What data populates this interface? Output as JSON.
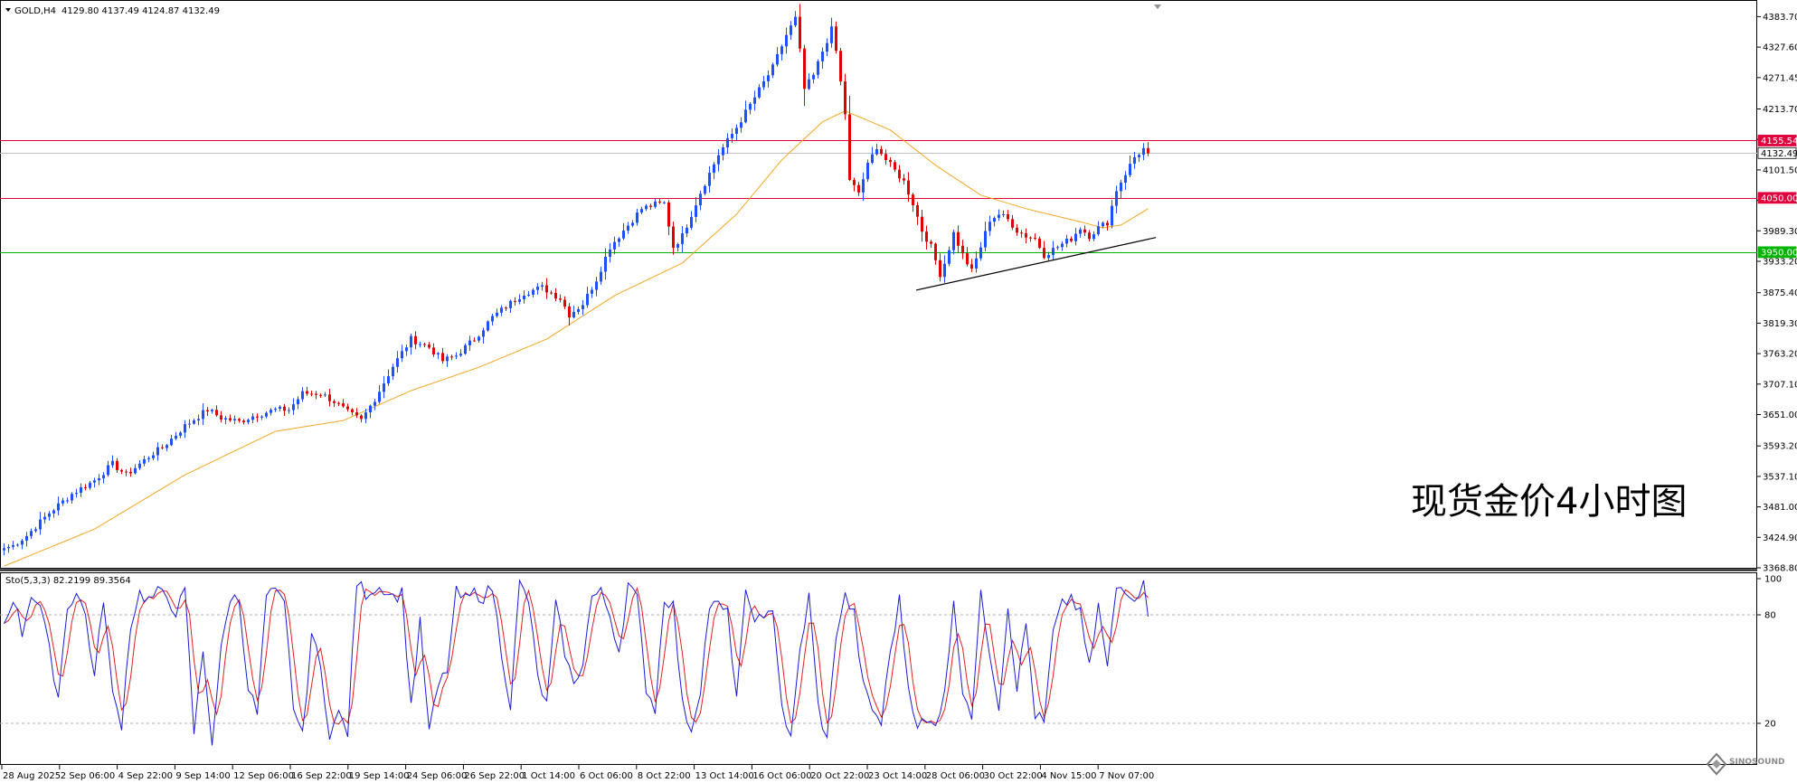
{
  "header": {
    "symbol": "GOLD,H4",
    "ohlc": "4129.80 4137.49 4124.87 4132.49"
  },
  "annotation": "现货金价4小时图",
  "watermark": "SINOSOUND",
  "colors": {
    "bull": "#1e50ff",
    "bear": "#e00000",
    "ma": "#f5a623",
    "resistance": "#e0003c",
    "support": "#00b400",
    "price_line": "#c0c0c0",
    "sto_main": "#1a1ad6",
    "sto_signal": "#e02020",
    "trendline": "#000000"
  },
  "price_axis": {
    "ticks": [
      "4383.70",
      "4327.60",
      "4271.45",
      "4213.70",
      "4157.60",
      "4101.50",
      "4045.40",
      "3989.30",
      "3933.20",
      "3875.40",
      "3819.30",
      "3763.20",
      "3707.10",
      "3651.00",
      "3593.20",
      "3537.10",
      "3481.00",
      "3424.90",
      "3368.80"
    ],
    "tick_values": [
      4383.7,
      4327.6,
      4271.45,
      4213.7,
      4157.6,
      4101.5,
      4045.4,
      3989.3,
      3933.2,
      3875.4,
      3819.3,
      3763.2,
      3707.1,
      3651.0,
      3593.2,
      3537.1,
      3481.0,
      3424.9,
      3368.8
    ],
    "range": [
      3368.8,
      4411
    ]
  },
  "levels": [
    {
      "label": "4155.54",
      "value": 4155.54,
      "type": "resistance"
    },
    {
      "label": "4132.49",
      "value": 4132.49,
      "type": "current"
    },
    {
      "label": "4050.00",
      "value": 4050.0,
      "type": "resistance"
    },
    {
      "label": "3950.00",
      "value": 3950.0,
      "type": "support"
    }
  ],
  "time_axis": [
    "28 Aug 2025",
    "2 Sep 06:00",
    "4 Sep 22:00",
    "9 Sep 14:00",
    "12 Sep 06:00",
    "16 Sep 22:00",
    "19 Sep 14:00",
    "24 Sep 06:00",
    "26 Sep 22:00",
    "1 Oct 14:00",
    "6 Oct 06:00",
    "8 Oct 22:00",
    "13 Oct 14:00",
    "16 Oct 06:00",
    "20 Oct 22:00",
    "23 Oct 14:00",
    "28 Oct 06:00",
    "30 Oct 22:00",
    "4 Nov 15:00",
    "7 Nov 07:00"
  ],
  "stochastic": {
    "label": "Sto(5,3,3) 82.2199 89.3564",
    "levels": [
      "100",
      "80",
      "20"
    ],
    "level_values": [
      100,
      80,
      20
    ]
  },
  "chart_data": [
    {
      "type": "candlestick",
      "title": "GOLD,H4",
      "ylim": [
        3368.8,
        4411
      ],
      "x_labels": [
        "28 Aug 2025",
        "2 Sep 06:00",
        "4 Sep 22:00",
        "9 Sep 14:00",
        "12 Sep 06:00",
        "16 Sep 22:00",
        "19 Sep 14:00",
        "24 Sep 06:00",
        "26 Sep 22:00",
        "1 Oct 14:00",
        "6 Oct 06:00",
        "8 Oct 22:00",
        "13 Oct 14:00",
        "16 Oct 06:00",
        "20 Oct 22:00",
        "23 Oct 14:00",
        "28 Oct 06:00",
        "30 Oct 22:00",
        "4 Nov 15:00",
        "7 Nov 07:00"
      ],
      "close_anchors": [
        [
          0,
          3405
        ],
        [
          2,
          3410
        ],
        [
          5,
          3428
        ],
        [
          10,
          3470
        ],
        [
          15,
          3505
        ],
        [
          20,
          3530
        ],
        [
          24,
          3560
        ],
        [
          27,
          3540
        ],
        [
          30,
          3560
        ],
        [
          33,
          3580
        ],
        [
          35,
          3590
        ],
        [
          40,
          3630
        ],
        [
          45,
          3660
        ],
        [
          48,
          3645
        ],
        [
          52,
          3638
        ],
        [
          55,
          3648
        ],
        [
          60,
          3660
        ],
        [
          63,
          3660
        ],
        [
          66,
          3690
        ],
        [
          70,
          3690
        ],
        [
          73,
          3675
        ],
        [
          76,
          3655
        ],
        [
          79,
          3640
        ],
        [
          82,
          3680
        ],
        [
          86,
          3740
        ],
        [
          90,
          3790
        ],
        [
          94,
          3775
        ],
        [
          97,
          3750
        ],
        [
          100,
          3760
        ],
        [
          104,
          3790
        ],
        [
          108,
          3830
        ],
        [
          111,
          3850
        ],
        [
          115,
          3875
        ],
        [
          119,
          3885
        ],
        [
          123,
          3865
        ],
        [
          125,
          3835
        ],
        [
          128,
          3855
        ],
        [
          131,
          3900
        ],
        [
          134,
          3960
        ],
        [
          138,
          4000
        ],
        [
          141,
          4030
        ],
        [
          144,
          4038
        ],
        [
          146,
          4040
        ],
        [
          148,
          3960
        ],
        [
          150,
          3980
        ],
        [
          154,
          4060
        ],
        [
          158,
          4130
        ],
        [
          162,
          4180
        ],
        [
          166,
          4235
        ],
        [
          170,
          4290
        ],
        [
          173,
          4350
        ],
        [
          175,
          4380
        ],
        [
          176,
          4320
        ],
        [
          177,
          4250
        ],
        [
          179,
          4275
        ],
        [
          181,
          4320
        ],
        [
          183,
          4360
        ],
        [
          184,
          4320
        ],
        [
          186,
          4205
        ],
        [
          187,
          4080
        ],
        [
          189,
          4060
        ],
        [
          191,
          4110
        ],
        [
          193,
          4145
        ],
        [
          195,
          4120
        ],
        [
          197,
          4100
        ],
        [
          199,
          4080
        ],
        [
          201,
          4040
        ],
        [
          203,
          3990
        ],
        [
          205,
          3960
        ],
        [
          207,
          3910
        ],
        [
          208,
          3930
        ],
        [
          210,
          3985
        ],
        [
          212,
          3945
        ],
        [
          214,
          3915
        ],
        [
          216,
          3960
        ],
        [
          218,
          4010
        ],
        [
          220,
          4020
        ],
        [
          222,
          4010
        ],
        [
          224,
          3990
        ],
        [
          226,
          3980
        ],
        [
          228,
          3975
        ],
        [
          230,
          3945
        ],
        [
          232,
          3955
        ],
        [
          234,
          3965
        ],
        [
          236,
          3975
        ],
        [
          238,
          3995
        ],
        [
          240,
          3980
        ],
        [
          242,
          3995
        ],
        [
          244,
          4005
        ],
        [
          246,
          4065
        ],
        [
          248,
          4095
        ],
        [
          250,
          4125
        ],
        [
          252,
          4140
        ],
        [
          253,
          4132
        ]
      ],
      "moving_average_anchors": [
        [
          0,
          3372
        ],
        [
          20,
          3440
        ],
        [
          40,
          3540
        ],
        [
          60,
          3620
        ],
        [
          75,
          3640
        ],
        [
          90,
          3695
        ],
        [
          105,
          3738
        ],
        [
          120,
          3790
        ],
        [
          135,
          3870
        ],
        [
          150,
          3930
        ],
        [
          162,
          4020
        ],
        [
          172,
          4120
        ],
        [
          181,
          4190
        ],
        [
          186,
          4210
        ],
        [
          196,
          4175
        ],
        [
          206,
          4110
        ],
        [
          216,
          4055
        ],
        [
          226,
          4030
        ],
        [
          236,
          4010
        ],
        [
          243,
          3995
        ],
        [
          247,
          4000
        ],
        [
          253,
          4030
        ]
      ],
      "trendline": {
        "start": [
          202,
          3880
        ],
        "end": [
          255,
          3977
        ]
      },
      "annotations": [
        "现货金价4小时图"
      ]
    },
    {
      "type": "line",
      "title": "Sto(5,3,3) 82.2199 89.3564",
      "ylim": [
        0,
        100
      ],
      "levels": [
        20,
        80
      ],
      "main_anchors": [
        [
          0,
          75
        ],
        [
          2,
          90
        ],
        [
          4,
          70
        ],
        [
          6,
          92
        ],
        [
          8,
          85
        ],
        [
          10,
          60
        ],
        [
          12,
          35
        ],
        [
          14,
          85
        ],
        [
          16,
          92
        ],
        [
          18,
          80
        ],
        [
          20,
          45
        ],
        [
          22,
          90
        ],
        [
          24,
          35
        ],
        [
          26,
          20
        ],
        [
          28,
          75
        ],
        [
          30,
          92
        ],
        [
          32,
          88
        ],
        [
          34,
          92
        ],
        [
          36,
          90
        ],
        [
          38,
          82
        ],
        [
          40,
          92
        ],
        [
          42,
          15
        ],
        [
          44,
          60
        ],
        [
          46,
          10
        ],
        [
          48,
          60
        ],
        [
          50,
          90
        ],
        [
          52,
          88
        ],
        [
          54,
          40
        ],
        [
          56,
          25
        ],
        [
          58,
          90
        ],
        [
          60,
          92
        ],
        [
          62,
          85
        ],
        [
          64,
          30
        ],
        [
          66,
          12
        ],
        [
          68,
          70
        ],
        [
          70,
          50
        ],
        [
          72,
          15
        ],
        [
          74,
          25
        ],
        [
          76,
          15
        ],
        [
          78,
          98
        ],
        [
          80,
          92
        ],
        [
          82,
          95
        ],
        [
          84,
          95
        ],
        [
          86,
          90
        ],
        [
          88,
          92
        ],
        [
          90,
          30
        ],
        [
          92,
          75
        ],
        [
          94,
          15
        ],
        [
          96,
          40
        ],
        [
          98,
          50
        ],
        [
          100,
          92
        ],
        [
          102,
          88
        ],
        [
          104,
          92
        ],
        [
          106,
          90
        ],
        [
          108,
          95
        ],
        [
          110,
          60
        ],
        [
          112,
          30
        ],
        [
          114,
          97
        ],
        [
          116,
          88
        ],
        [
          118,
          45
        ],
        [
          120,
          30
        ],
        [
          122,
          85
        ],
        [
          124,
          60
        ],
        [
          126,
          40
        ],
        [
          128,
          55
        ],
        [
          130,
          90
        ],
        [
          132,
          92
        ],
        [
          134,
          80
        ],
        [
          136,
          60
        ],
        [
          138,
          97
        ],
        [
          140,
          88
        ],
        [
          142,
          40
        ],
        [
          144,
          28
        ],
        [
          146,
          90
        ],
        [
          148,
          85
        ],
        [
          150,
          30
        ],
        [
          152,
          17
        ],
        [
          154,
          40
        ],
        [
          156,
          85
        ],
        [
          158,
          85
        ],
        [
          160,
          80
        ],
        [
          162,
          35
        ],
        [
          164,
          90
        ],
        [
          166,
          80
        ],
        [
          168,
          75
        ],
        [
          170,
          85
        ],
        [
          172,
          30
        ],
        [
          174,
          10
        ],
        [
          176,
          60
        ],
        [
          178,
          90
        ],
        [
          180,
          30
        ],
        [
          182,
          10
        ],
        [
          184,
          70
        ],
        [
          186,
          90
        ],
        [
          188,
          80
        ],
        [
          190,
          40
        ],
        [
          192,
          28
        ],
        [
          194,
          20
        ],
        [
          196,
          60
        ],
        [
          198,
          88
        ],
        [
          200,
          40
        ],
        [
          202,
          20
        ],
        [
          204,
          20
        ],
        [
          206,
          18
        ],
        [
          208,
          40
        ],
        [
          210,
          85
        ],
        [
          212,
          40
        ],
        [
          214,
          25
        ],
        [
          216,
          90
        ],
        [
          218,
          60
        ],
        [
          220,
          30
        ],
        [
          222,
          85
        ],
        [
          224,
          40
        ],
        [
          226,
          75
        ],
        [
          228,
          25
        ],
        [
          230,
          20
        ],
        [
          232,
          70
        ],
        [
          234,
          85
        ],
        [
          236,
          90
        ],
        [
          238,
          80
        ],
        [
          240,
          50
        ],
        [
          242,
          85
        ],
        [
          244,
          50
        ],
        [
          246,
          95
        ],
        [
          248,
          95
        ],
        [
          250,
          90
        ],
        [
          252,
          98
        ],
        [
          253,
          82
        ]
      ]
    }
  ]
}
